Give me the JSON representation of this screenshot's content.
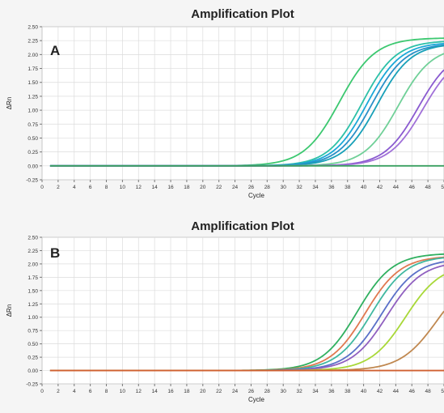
{
  "chart_data": [
    {
      "panel": "A",
      "type": "line",
      "title": "Amplification Plot",
      "xlabel": "Cycle",
      "ylabel": "ΔRn",
      "xlim": [
        0,
        50
      ],
      "ylim": [
        -0.25,
        2.5
      ],
      "x_ticks": [
        "0",
        "2",
        "4",
        "6",
        "8",
        "10",
        "12",
        "14",
        "16",
        "18",
        "20",
        "22",
        "24",
        "26",
        "28",
        "30",
        "32",
        "34",
        "36",
        "38",
        "40",
        "42",
        "44",
        "46",
        "48",
        "50"
      ],
      "y_ticks": [
        "2.50",
        "2.25",
        "2.00",
        "1.75",
        "1.50",
        "1.25",
        "1.00",
        "0.75",
        "0.50",
        "0.25",
        "0.00",
        "-0.25"
      ],
      "y_values": [
        2.5,
        2.25,
        2.0,
        1.75,
        1.5,
        1.25,
        1.0,
        0.75,
        0.5,
        0.25,
        0.0,
        -0.25
      ],
      "grid": true,
      "series": [
        {
          "color": "#3cc870",
          "params": {
            "plateau": 2.3,
            "midpoint": 37.0,
            "slope": 2.2
          }
        },
        {
          "color": "#2cc0a8",
          "params": {
            "plateau": 2.25,
            "midpoint": 39.8,
            "slope": 2.1
          }
        },
        {
          "color": "#1aa8d8",
          "params": {
            "plateau": 2.22,
            "midpoint": 40.4,
            "slope": 2.1
          }
        },
        {
          "color": "#2a90c8",
          "params": {
            "plateau": 2.2,
            "midpoint": 41.0,
            "slope": 2.1
          }
        },
        {
          "color": "#18a0b8",
          "params": {
            "plateau": 2.2,
            "midpoint": 41.7,
            "slope": 2.1
          }
        },
        {
          "color": "#70d098",
          "params": {
            "plateau": 2.15,
            "midpoint": 44.3,
            "slope": 2.1
          }
        },
        {
          "color": "#8a5ad0",
          "params": {
            "plateau": 2.1,
            "midpoint": 46.8,
            "slope": 2.1
          }
        },
        {
          "color": "#a070d8",
          "params": {
            "plateau": 2.05,
            "midpoint": 47.4,
            "slope": 2.1
          }
        },
        {
          "color": "#3aa060",
          "params": {
            "plateau": 0.0,
            "midpoint": 60,
            "slope": 3
          }
        }
      ]
    },
    {
      "panel": "B",
      "type": "line",
      "title": "Amplification Plot",
      "xlabel": "Cycle",
      "ylabel": "ΔRn",
      "xlim": [
        0,
        50
      ],
      "ylim": [
        -0.25,
        2.5
      ],
      "x_ticks": [
        "0",
        "2",
        "4",
        "6",
        "8",
        "10",
        "12",
        "14",
        "16",
        "18",
        "20",
        "22",
        "24",
        "26",
        "28",
        "30",
        "32",
        "34",
        "36",
        "38",
        "40",
        "42",
        "44",
        "46",
        "48",
        "50"
      ],
      "y_ticks": [
        "2.50",
        "2.25",
        "2.00",
        "1.75",
        "1.50",
        "1.25",
        "1.00",
        "0.75",
        "0.50",
        "0.25",
        "0.00",
        "-0.25"
      ],
      "y_values": [
        2.5,
        2.25,
        2.0,
        1.75,
        1.5,
        1.25,
        1.0,
        0.75,
        0.5,
        0.25,
        0.0,
        -0.25
      ],
      "grid": true,
      "series": [
        {
          "color": "#30b060",
          "params": {
            "plateau": 2.2,
            "midpoint": 39.2,
            "slope": 2.2
          }
        },
        {
          "color": "#e07850",
          "params": {
            "plateau": 2.15,
            "midpoint": 40.2,
            "slope": 2.2
          }
        },
        {
          "color": "#40b8a0",
          "params": {
            "plateau": 2.15,
            "midpoint": 41.0,
            "slope": 2.2
          }
        },
        {
          "color": "#5a70c8",
          "params": {
            "plateau": 2.1,
            "midpoint": 42.2,
            "slope": 2.2
          }
        },
        {
          "color": "#9060c0",
          "params": {
            "plateau": 2.05,
            "midpoint": 42.9,
            "slope": 2.2
          }
        },
        {
          "color": "#a8d838",
          "params": {
            "plateau": 2.0,
            "midpoint": 45.2,
            "slope": 2.2
          }
        },
        {
          "color": "#c08850",
          "params": {
            "plateau": 1.9,
            "midpoint": 49.2,
            "slope": 2.3
          }
        },
        {
          "color": "#d06030",
          "params": {
            "plateau": 0.0,
            "midpoint": 60,
            "slope": 3
          }
        }
      ]
    }
  ]
}
